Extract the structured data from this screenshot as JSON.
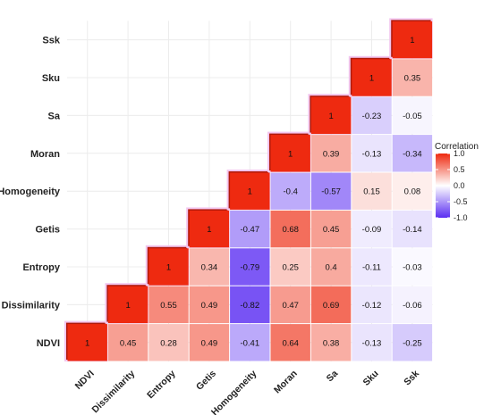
{
  "chart_data": {
    "type": "heatmap",
    "variables": [
      "NDVI",
      "Dissimilarity",
      "Entropy",
      "Getis",
      "Homogeneity",
      "Moran",
      "Sa",
      "Sku",
      "Ssk"
    ],
    "matrix": [
      [
        "1",
        "0.45",
        "0.28",
        "0.49",
        "-0.41",
        "0.64",
        "0.38",
        "-0.13",
        "-0.25"
      ],
      [
        "",
        "1",
        "0.55",
        "0.49",
        "-0.82",
        "0.47",
        "0.69",
        "-0.12",
        "-0.06"
      ],
      [
        "",
        "",
        "1",
        "0.34",
        "-0.79",
        "0.25",
        "0.4",
        "-0.11",
        "-0.03"
      ],
      [
        "",
        "",
        "",
        "1",
        "-0.47",
        "0.68",
        "0.45",
        "-0.09",
        "-0.14"
      ],
      [
        "",
        "",
        "",
        "",
        "1",
        "-0.4",
        "-0.57",
        "0.15",
        "0.08"
      ],
      [
        "",
        "",
        "",
        "",
        "",
        "1",
        "0.39",
        "-0.13",
        "-0.34"
      ],
      [
        "",
        "",
        "",
        "",
        "",
        "",
        "1",
        "-0.23",
        "-0.05"
      ],
      [
        "",
        "",
        "",
        "",
        "",
        "",
        "",
        "1",
        "0.35"
      ],
      [
        "",
        "",
        "",
        "",
        "",
        "",
        "",
        "",
        "1"
      ]
    ],
    "legend": {
      "title": "Correlation",
      "ticks": [
        "1.0",
        "0.5",
        "0.0",
        "-0.5",
        "-1.0"
      ],
      "tick_values": [
        1.0,
        0.5,
        0.0,
        -0.5,
        -1.0
      ],
      "position": "right"
    },
    "colors": {
      "high": "#ee2a10",
      "mid": "#ffffff",
      "low": "#5a2df2"
    },
    "grid": true
  }
}
